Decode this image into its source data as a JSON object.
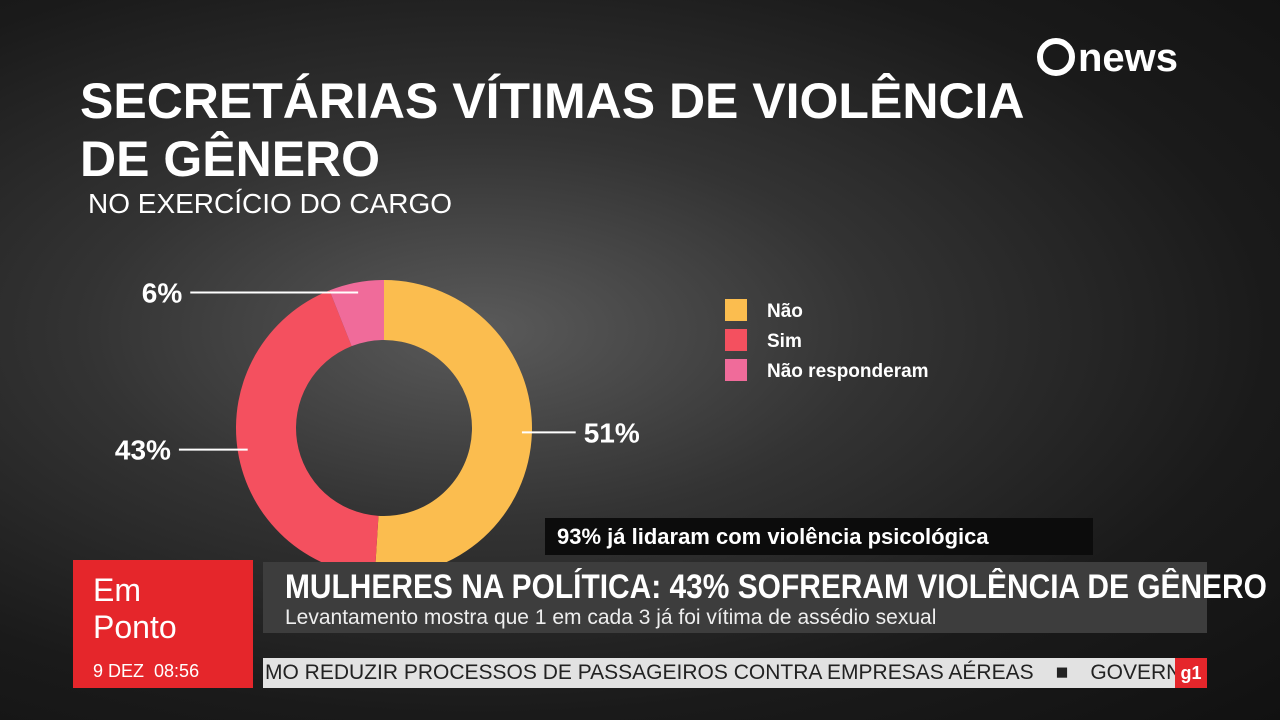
{
  "logo": "news",
  "chart_data": {
    "type": "pie",
    "donut": true,
    "title": "SECRETÁRIAS VÍTIMAS DE VIOLÊNCIA DE GÊNERO",
    "subtitle": "NO EXERCÍCIO DO CARGO",
    "categories": [
      "Não",
      "Sim",
      "Não responderam"
    ],
    "values": [
      51,
      43,
      6
    ],
    "value_labels": [
      "51%",
      "43%",
      "6%"
    ],
    "colors": [
      "#fbbd4f",
      "#f4505f",
      "#f06b9a"
    ]
  },
  "lower_third": {
    "caption": "93% já lidaram com violência psicológica",
    "show": "Em Ponto",
    "date": "9 DEZ",
    "time": "08:56",
    "headline": "MULHERES NA POLÍTICA: 43% SOFRERAM VIOLÊNCIA DE GÊNERO",
    "subheadline": "Levantamento mostra que 1 em cada 3 já foi vítima de assédio sexual",
    "ticker": "MO REDUZIR PROCESSOS DE PASSAGEIROS CONTRA EMPRESAS AÉREAS",
    "ticker_next": "GOVERNO D",
    "badge": "g1"
  }
}
